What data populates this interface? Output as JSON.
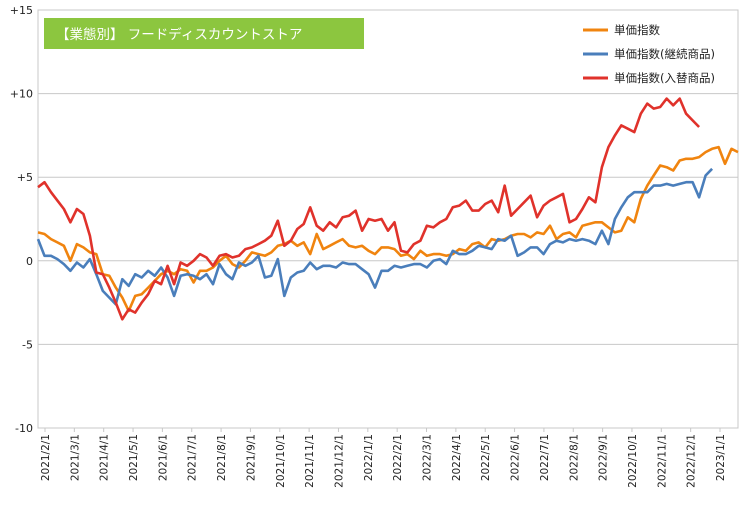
{
  "chart_data": {
    "type": "line",
    "title": "【業態別】 フードディスカウントストア",
    "title_bg_color": "#8cc63f",
    "ylim": [
      -10,
      15
    ],
    "yticks": [
      {
        "value": 15,
        "label": "+15"
      },
      {
        "value": 10,
        "label": "+10"
      },
      {
        "value": 5,
        "label": "+5"
      },
      {
        "value": 0,
        "label": "0"
      },
      {
        "value": -5,
        "label": "-5"
      },
      {
        "value": -10,
        "label": "-10"
      }
    ],
    "x_tick_labels": [
      "2021/2/1",
      "2021/3/1",
      "2021/4/1",
      "2021/5/1",
      "2021/6/1",
      "2021/7/1",
      "2021/8/1",
      "2021/9/1",
      "2021/10/1",
      "2021/11/1",
      "2021/12/1",
      "2022/1/1",
      "2022/2/1",
      "2022/3/1",
      "2022/4/1",
      "2022/5/1",
      "2022/6/1",
      "2022/7/1",
      "2022/8/1",
      "2022/9/1",
      "2022/10/1",
      "2022/11/1",
      "2022/12/1",
      "2023/1/1"
    ],
    "grid": "horizontal",
    "legend_position": "top-right",
    "series": [
      {
        "name": "単価指数",
        "color": "#f0840f",
        "values": [
          1.7,
          1.6,
          1.3,
          1.1,
          0.9,
          0.0,
          1.0,
          0.8,
          0.5,
          0.4,
          -0.8,
          -0.9,
          -1.6,
          -2.2,
          -3.0,
          -2.1,
          -2.0,
          -1.6,
          -1.2,
          -0.8,
          -0.6,
          -0.8,
          -0.5,
          -0.6,
          -1.3,
          -0.6,
          -0.6,
          -0.4,
          0.0,
          0.3,
          -0.2,
          -0.4,
          0.0,
          0.5,
          0.4,
          0.3,
          0.5,
          0.9,
          1.0,
          1.2,
          0.9,
          1.1,
          0.4,
          1.6,
          0.7,
          0.9,
          1.1,
          1.3,
          0.9,
          0.8,
          0.9,
          0.6,
          0.4,
          0.8,
          0.8,
          0.7,
          0.3,
          0.4,
          0.1,
          0.6,
          0.3,
          0.4,
          0.4,
          0.3,
          0.4,
          0.7,
          0.6,
          1.0,
          1.1,
          0.8,
          1.3,
          1.2,
          1.3,
          1.5,
          1.6,
          1.6,
          1.4,
          1.7,
          1.6,
          2.1,
          1.3,
          1.6,
          1.7,
          1.4,
          2.1,
          2.2,
          2.3,
          2.3,
          2.0,
          1.7,
          1.8,
          2.6,
          2.3,
          3.7,
          4.5,
          5.1,
          5.7,
          5.6,
          5.4,
          6.0,
          6.1,
          6.1,
          6.2,
          6.5,
          6.7,
          6.8,
          5.8,
          6.7,
          6.5
        ]
      },
      {
        "name": "単価指数(継続商品)",
        "color": "#4a7ebb",
        "values": [
          1.3,
          0.3,
          0.3,
          0.1,
          -0.2,
          -0.6,
          -0.1,
          -0.4,
          0.1,
          -0.8,
          -1.8,
          -2.2,
          -2.6,
          -1.1,
          -1.5,
          -0.8,
          -1.0,
          -0.6,
          -0.9,
          -0.4,
          -1.0,
          -2.1,
          -0.9,
          -0.8,
          -0.9,
          -1.1,
          -0.8,
          -1.4,
          -0.2,
          -0.8,
          -1.1,
          -0.1,
          -0.3,
          -0.1,
          0.3,
          -1.0,
          -0.9,
          0.1,
          -2.1,
          -1.0,
          -0.7,
          -0.6,
          -0.1,
          -0.5,
          -0.3,
          -0.3,
          -0.4,
          -0.1,
          -0.2,
          -0.2,
          -0.5,
          -0.8,
          -1.6,
          -0.6,
          -0.6,
          -0.3,
          -0.4,
          -0.3,
          -0.2,
          -0.2,
          -0.4,
          0.0,
          0.1,
          -0.2,
          0.6,
          0.4,
          0.4,
          0.6,
          0.9,
          0.8,
          0.7,
          1.3,
          1.2,
          1.5,
          0.3,
          0.5,
          0.8,
          0.8,
          0.4,
          1.0,
          1.2,
          1.1,
          1.3,
          1.2,
          1.3,
          1.2,
          1.0,
          1.8,
          1.0,
          2.5,
          3.2,
          3.8,
          4.1,
          4.1,
          4.1,
          4.5,
          4.5,
          4.6,
          4.5,
          4.6,
          4.7,
          4.7,
          3.8,
          5.1,
          5.5
        ]
      },
      {
        "name": "単価指数(入替商品)",
        "color": "#e0322b",
        "values": [
          4.4,
          4.7,
          4.1,
          3.6,
          3.1,
          2.3,
          3.1,
          2.8,
          1.5,
          -0.7,
          -0.8,
          -1.6,
          -2.5,
          -3.5,
          -2.9,
          -3.1,
          -2.5,
          -2.0,
          -1.2,
          -1.4,
          -0.3,
          -1.4,
          -0.1,
          -0.3,
          0.0,
          0.4,
          0.2,
          -0.3,
          0.3,
          0.4,
          0.2,
          0.3,
          0.7,
          0.8,
          1.0,
          1.2,
          1.5,
          2.4,
          0.9,
          1.2,
          1.9,
          2.2,
          3.2,
          2.1,
          1.8,
          2.3,
          2.0,
          2.6,
          2.7,
          3.0,
          1.8,
          2.5,
          2.4,
          2.5,
          1.8,
          2.3,
          0.6,
          0.5,
          1.0,
          1.2,
          2.1,
          2.0,
          2.3,
          2.5,
          3.2,
          3.3,
          3.6,
          3.0,
          3.0,
          3.4,
          3.6,
          2.9,
          4.5,
          2.7,
          3.1,
          3.5,
          3.9,
          2.6,
          3.3,
          3.6,
          3.8,
          4.0,
          2.3,
          2.5,
          3.1,
          3.8,
          3.5,
          5.6,
          6.8,
          7.5,
          8.1,
          7.9,
          7.7,
          8.8,
          9.4,
          9.1,
          9.2,
          9.7,
          9.3,
          9.7,
          8.8,
          8.4,
          8.0
        ]
      }
    ]
  }
}
